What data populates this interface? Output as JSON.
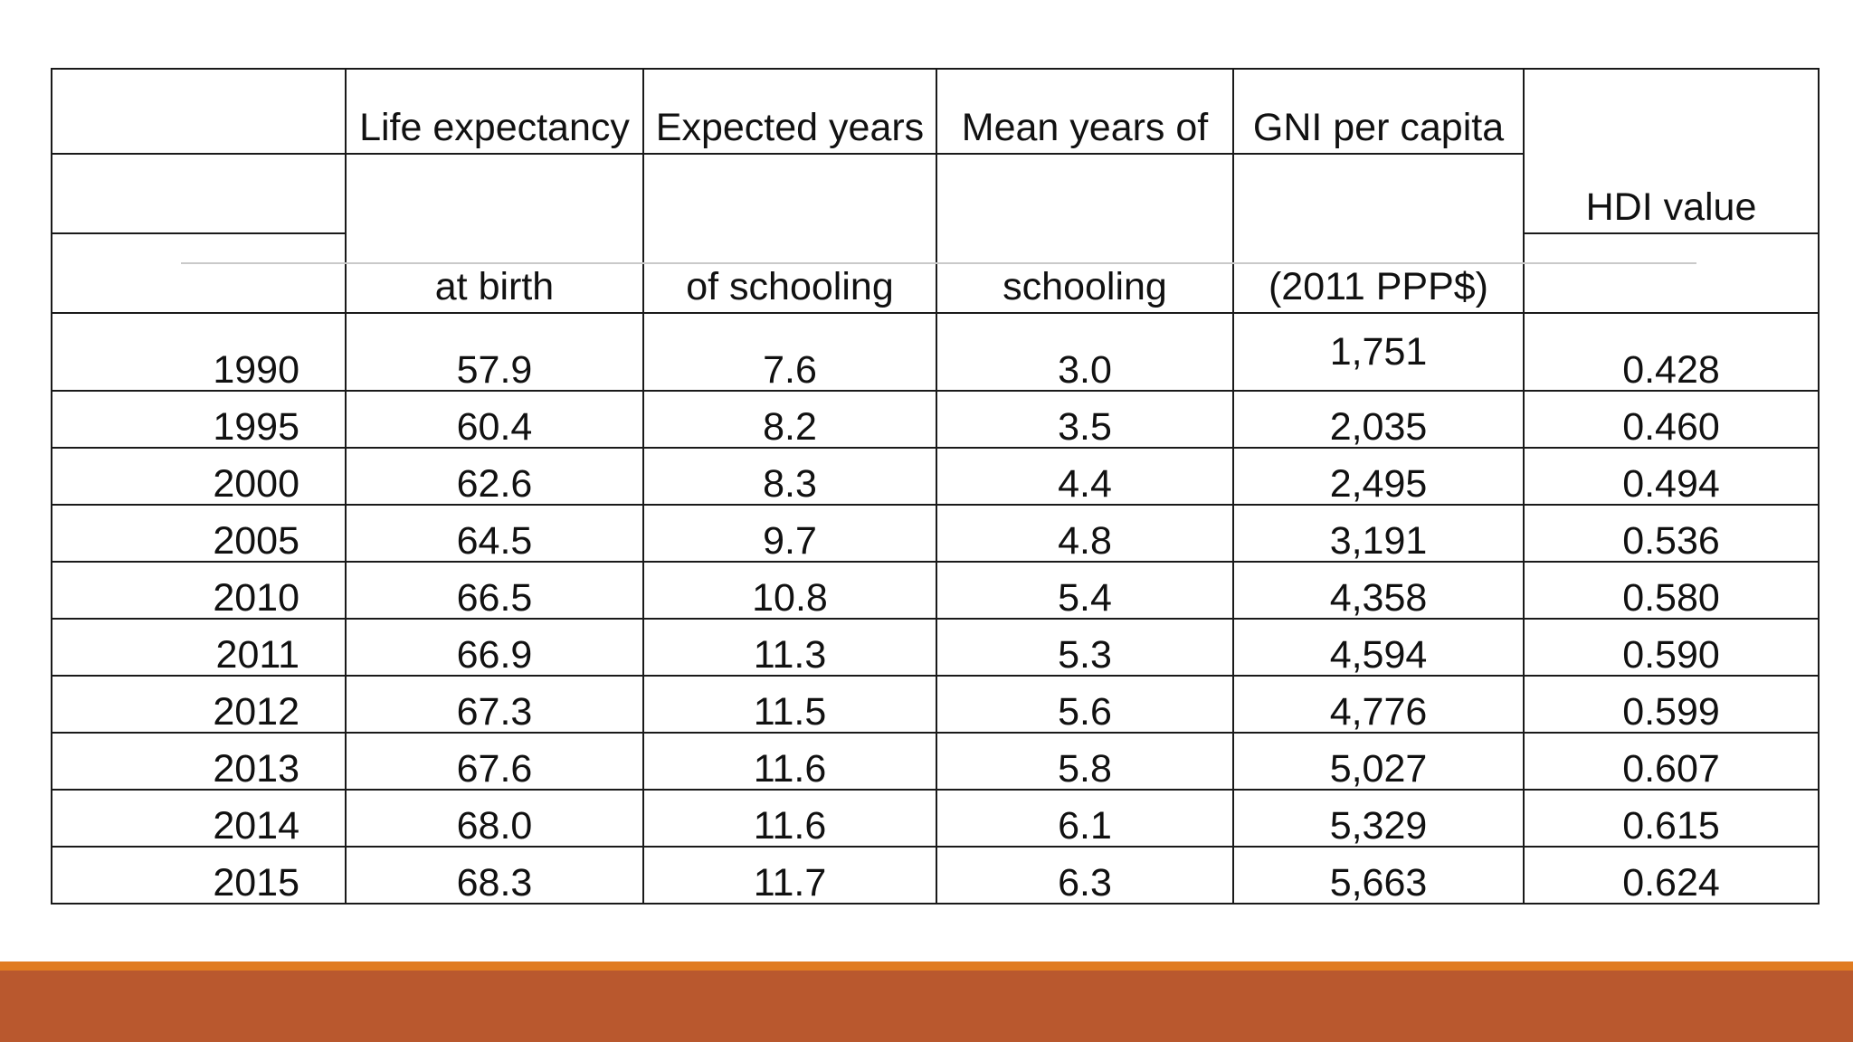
{
  "colors": {
    "accent_orange": "#e07b21",
    "accent_rust": "#b9582e",
    "rule_gray": "#c9c9c9"
  },
  "table": {
    "headers": {
      "life_expectancy": [
        "Life expectancy",
        "at birth"
      ],
      "expected_years": [
        "Expected years",
        "of schooling"
      ],
      "mean_years": [
        "Mean years of",
        "schooling"
      ],
      "gni": [
        "GNI per capita",
        "(2011 PPP$)"
      ],
      "hdi": "HDI value"
    },
    "rows": [
      [
        "1990",
        "57.9",
        "7.6",
        "3.0",
        "1,751",
        "0.428"
      ],
      [
        "1995",
        "60.4",
        "8.2",
        "3.5",
        "2,035",
        "0.460"
      ],
      [
        "2000",
        "62.6",
        "8.3",
        "4.4",
        "2,495",
        "0.494"
      ],
      [
        "2005",
        "64.5",
        "9.7",
        "4.8",
        "3,191",
        "0.536"
      ],
      [
        "2010",
        "66.5",
        "10.8",
        "5.4",
        "4,358",
        "0.580"
      ],
      [
        "2011",
        "66.9",
        "11.3",
        "5.3",
        "4,594",
        "0.590"
      ],
      [
        "2012",
        "67.3",
        "11.5",
        "5.6",
        "4,776",
        "0.599"
      ],
      [
        "2013",
        "67.6",
        "11.6",
        "5.8",
        "5,027",
        "0.607"
      ],
      [
        "2014",
        "68.0",
        "11.6",
        "6.1",
        "5,329",
        "0.615"
      ],
      [
        "2015",
        "68.3",
        "11.7",
        "6.3",
        "5,663",
        "0.624"
      ]
    ]
  }
}
